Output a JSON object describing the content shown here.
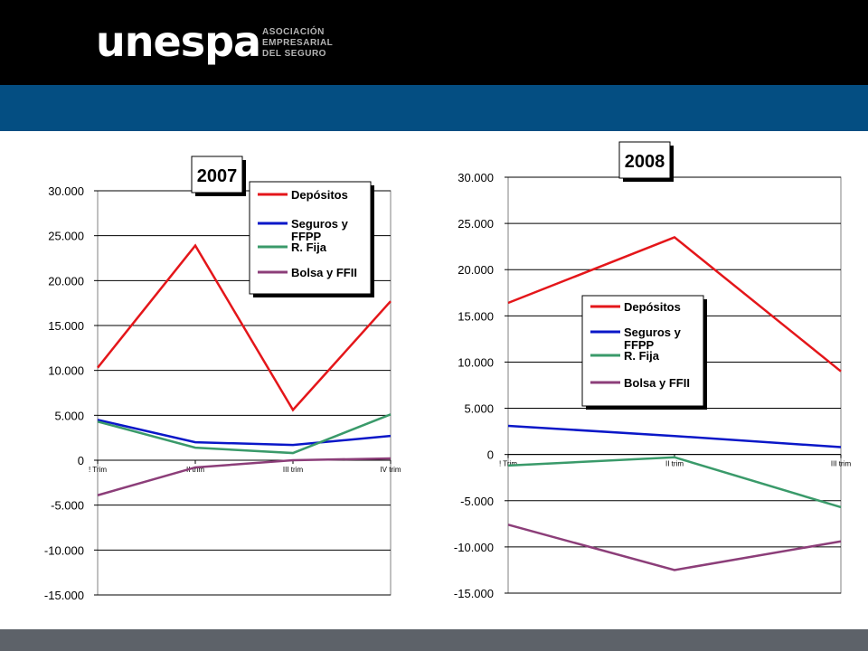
{
  "header": {
    "logo_word": "unespa",
    "logo_subtitle": [
      "ASOCIACIÓN",
      "EMPRESARIAL",
      "DEL SEGURO"
    ],
    "colors": {
      "top_bar": "#000000",
      "blue_bar": "#044e82",
      "footer_bar": "#5d6269"
    }
  },
  "chart_data": [
    {
      "type": "line",
      "title": "2007",
      "categories": [
        "! Trim",
        "II trim",
        "III trim",
        "IV trim"
      ],
      "ylim": [
        -15000,
        30000
      ],
      "yticks": [
        "30.000",
        "25.000",
        "20.000",
        "15.000",
        "10.000",
        "5.000",
        "0",
        "-5.000",
        "-10.000",
        "-15.000"
      ],
      "grid": true,
      "legend_position": "top-right",
      "series": [
        {
          "name": "Depósitos",
          "color": "#e4161a",
          "values": [
            10300,
            23900,
            5600,
            17700
          ]
        },
        {
          "name": "Seguros y FFPP",
          "color": "#0a17c8",
          "values": [
            4500,
            2000,
            1700,
            2700
          ]
        },
        {
          "name": "R. Fija",
          "color": "#3a9a6a",
          "values": [
            4300,
            1400,
            800,
            5100
          ]
        },
        {
          "name": "Bolsa y FFII",
          "color": "#8c3e79",
          "values": [
            -3900,
            -800,
            0,
            200
          ]
        }
      ]
    },
    {
      "type": "line",
      "title": "2008",
      "categories": [
        "! Trim",
        "II trim",
        "III trim"
      ],
      "ylim": [
        -15000,
        30000
      ],
      "yticks": [
        "30.000",
        "25.000",
        "20.000",
        "15.000",
        "10.000",
        "5.000",
        "0",
        "-5.000",
        "-10.000",
        "-15.000"
      ],
      "grid": true,
      "legend_position": "center",
      "series": [
        {
          "name": "Depósitos",
          "color": "#e4161a",
          "values": [
            16400,
            23500,
            9000
          ]
        },
        {
          "name": "Seguros y FFPP",
          "color": "#0a17c8",
          "values": [
            3100,
            2000,
            800
          ]
        },
        {
          "name": "R. Fija",
          "color": "#3a9a6a",
          "values": [
            -1200,
            -300,
            -5700
          ]
        },
        {
          "name": "Bolsa y FFII",
          "color": "#8c3e79",
          "values": [
            -7600,
            -12500,
            -9400
          ]
        }
      ]
    }
  ]
}
